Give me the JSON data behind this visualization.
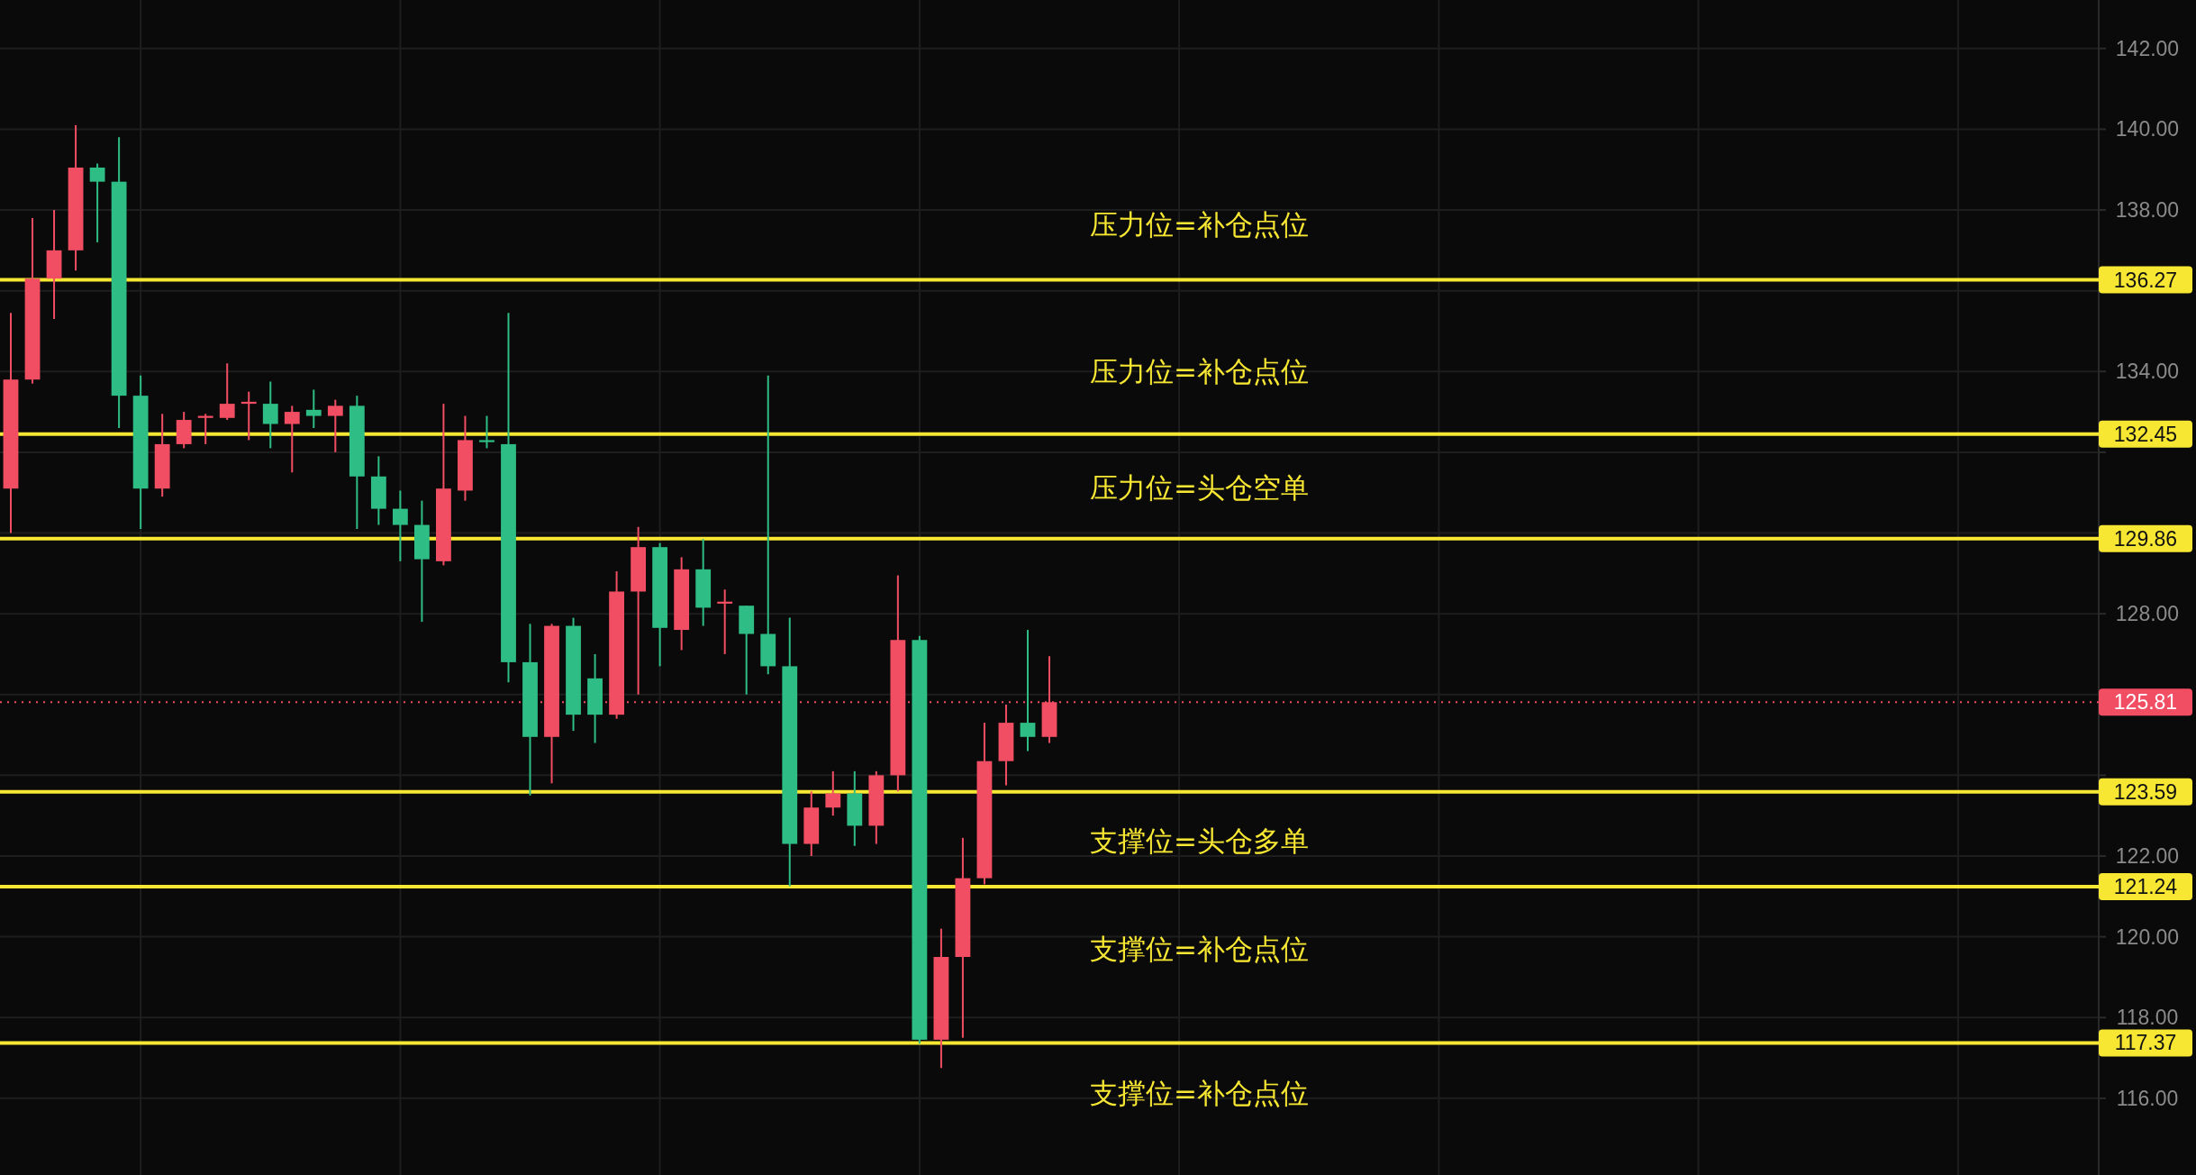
{
  "chart_data": {
    "type": "candlestick",
    "tick_labels": "y",
    "grid": true,
    "categories": [
      null,
      null,
      null,
      null,
      null,
      null,
      null,
      null,
      null,
      null,
      null,
      null,
      null,
      null,
      null,
      null,
      null,
      null,
      null,
      null,
      null,
      null,
      null,
      null,
      null,
      null,
      null,
      null,
      null,
      null,
      null,
      null,
      null,
      null,
      null,
      null,
      null,
      null,
      null,
      null,
      null,
      null,
      null,
      null,
      null,
      null,
      null,
      null,
      null,
      null,
      null,
      null,
      null,
      null,
      null,
      null,
      null,
      null,
      null,
      null,
      null,
      null,
      null,
      null,
      null,
      null,
      null,
      null,
      null,
      null,
      null,
      null,
      null,
      null,
      null,
      null,
      null,
      null,
      null,
      null,
      null,
      null,
      null,
      null,
      null,
      null,
      null,
      null,
      null,
      null,
      null,
      null,
      null,
      null,
      null,
      null,
      null
    ],
    "ohlc": [
      [
        131.1,
        135.45,
        130.0,
        133.8
      ],
      [
        133.8,
        137.8,
        133.7,
        136.3
      ],
      [
        136.3,
        138.0,
        135.3,
        137.0
      ],
      [
        137.0,
        140.1,
        136.5,
        139.05
      ],
      [
        139.05,
        139.15,
        137.2,
        138.7
      ],
      [
        138.7,
        139.8,
        132.6,
        133.4
      ],
      [
        133.4,
        133.9,
        130.1,
        131.1
      ],
      [
        131.1,
        132.95,
        130.9,
        132.2
      ],
      [
        132.2,
        133.0,
        132.1,
        132.8
      ],
      [
        132.85,
        132.95,
        132.2,
        132.9
      ],
      [
        132.85,
        134.2,
        132.8,
        133.2
      ],
      [
        133.2,
        133.5,
        132.3,
        133.25
      ],
      [
        133.2,
        133.75,
        132.1,
        132.7
      ],
      [
        132.7,
        133.15,
        131.5,
        133.0
      ],
      [
        133.05,
        133.55,
        132.6,
        132.9
      ],
      [
        132.9,
        133.3,
        132.0,
        133.15
      ],
      [
        133.15,
        133.4,
        130.1,
        131.4
      ],
      [
        131.4,
        131.9,
        130.2,
        130.6
      ],
      [
        130.6,
        131.05,
        129.3,
        130.2
      ],
      [
        130.2,
        130.8,
        127.8,
        129.35
      ],
      [
        129.3,
        133.2,
        129.2,
        131.1
      ],
      [
        131.05,
        132.9,
        130.8,
        132.3
      ],
      [
        132.3,
        132.9,
        132.1,
        132.25
      ],
      [
        132.2,
        135.45,
        126.3,
        126.8
      ],
      [
        126.8,
        127.75,
        123.5,
        124.95
      ],
      [
        124.95,
        127.75,
        123.8,
        127.7
      ],
      [
        127.7,
        127.9,
        125.1,
        125.5
      ],
      [
        126.4,
        127.0,
        124.8,
        125.5
      ],
      [
        125.5,
        129.05,
        125.4,
        128.55
      ],
      [
        128.55,
        130.15,
        126.0,
        129.65
      ],
      [
        129.65,
        129.75,
        126.7,
        127.65
      ],
      [
        127.6,
        129.4,
        127.1,
        129.1
      ],
      [
        129.1,
        129.85,
        127.7,
        128.15
      ],
      [
        128.25,
        128.6,
        127.0,
        128.3
      ],
      [
        128.2,
        128.2,
        126.0,
        127.5
      ],
      [
        127.5,
        133.9,
        126.5,
        126.7
      ],
      [
        126.7,
        127.9,
        121.25,
        122.3
      ],
      [
        122.3,
        123.6,
        122.0,
        123.2
      ],
      [
        123.2,
        124.1,
        123.0,
        123.55
      ],
      [
        123.55,
        124.1,
        122.25,
        122.75
      ],
      [
        122.75,
        124.1,
        122.3,
        124.0
      ],
      [
        124.0,
        128.95,
        123.6,
        127.35
      ],
      [
        127.35,
        127.45,
        117.35,
        117.45
      ],
      [
        117.45,
        120.2,
        116.75,
        119.5
      ],
      [
        119.5,
        122.45,
        117.5,
        121.45
      ],
      [
        121.45,
        125.3,
        121.3,
        124.35
      ],
      [
        124.35,
        125.75,
        123.75,
        125.3
      ],
      [
        125.3,
        127.6,
        124.6,
        124.95
      ],
      [
        124.95,
        126.95,
        124.8,
        125.81
      ],
      null,
      null,
      null,
      null,
      null,
      null,
      null,
      null,
      null,
      null,
      null,
      null,
      null,
      null,
      null,
      null,
      null,
      null,
      null,
      null,
      null,
      null,
      null,
      null,
      null,
      null,
      null,
      null,
      null,
      null,
      null,
      null,
      null,
      null,
      null,
      null,
      null,
      null,
      null,
      null,
      null,
      null,
      null,
      null,
      null,
      null,
      null,
      null
    ],
    "colors": [
      "#f24e63",
      "#f24e63",
      "#f24e63",
      "#f24e63",
      "#2ebd85",
      "#2ebd85",
      "#2ebd85",
      "#f24e63",
      "#f24e63",
      "#f24e63",
      "#f24e63",
      "#f24e63",
      "#2ebd85",
      "#f24e63",
      "#2ebd85",
      "#f24e63",
      "#2ebd85",
      "#2ebd85",
      "#2ebd85",
      "#2ebd85",
      "#f24e63",
      "#f24e63",
      "#2ebd85",
      "#2ebd85",
      "#2ebd85",
      "#f24e63",
      "#2ebd85",
      "#2ebd85",
      "#f24e63",
      "#f24e63",
      "#2ebd85",
      "#f24e63",
      "#2ebd85",
      "#f24e63",
      "#2ebd85",
      "#2ebd85",
      "#2ebd85",
      "#f24e63",
      "#f24e63",
      "#2ebd85",
      "#f24e63",
      "#f24e63",
      "#2ebd85",
      "#f24e63",
      "#f24e63",
      "#f24e63",
      "#f24e63",
      "#2ebd85",
      "#f24e63",
      null,
      null,
      null,
      null,
      null,
      null,
      null,
      null,
      null,
      null,
      null,
      null,
      null,
      null,
      null,
      null,
      null,
      null,
      null,
      null,
      null,
      null,
      null,
      null,
      null,
      null,
      null,
      null,
      null,
      null,
      null,
      null,
      null,
      null,
      null,
      null,
      null,
      null,
      null,
      null,
      null,
      null,
      null,
      null,
      null,
      null,
      null,
      null
    ],
    "ylim": [
      114.1,
      143.2
    ],
    "yticks": [
      {
        "value": 116,
        "label": "116.00"
      },
      {
        "value": 118,
        "label": "118.00"
      },
      {
        "value": 120,
        "label": "120.00"
      },
      {
        "value": 122,
        "label": "122.00"
      },
      {
        "value": 124,
        "label": null
      },
      {
        "value": 126,
        "label": null
      },
      {
        "value": 128,
        "label": "128.00"
      },
      {
        "value": 130,
        "label": null
      },
      {
        "value": 132,
        "label": null
      },
      {
        "value": 134,
        "label": "134.00"
      },
      {
        "value": 136,
        "label": null
      },
      {
        "value": 138,
        "label": "138.00"
      },
      {
        "value": 140,
        "label": "140.00"
      },
      {
        "value": 142,
        "label": "142.00"
      }
    ],
    "ref_lines": [
      {
        "axis": "y",
        "value": 136.27,
        "label": "136.27",
        "color": "#f7e733",
        "line_style": "solid"
      },
      {
        "axis": "y",
        "value": 132.45,
        "label": "132.45",
        "color": "#f7e733",
        "line_style": "solid"
      },
      {
        "axis": "y",
        "value": 129.86,
        "label": "129.86",
        "color": "#f7e733",
        "line_style": "solid"
      },
      {
        "axis": "y",
        "value": 125.81,
        "label": "125.81",
        "color": "#f24e63",
        "line_style": "dotted"
      },
      {
        "axis": "y",
        "value": 123.59,
        "label": "123.59",
        "color": "#f7e733",
        "line_style": "solid"
      },
      {
        "axis": "y",
        "value": 121.24,
        "label": "121.24",
        "color": "#f7e733",
        "line_style": "solid"
      },
      {
        "axis": "y",
        "value": 117.37,
        "label": "117.37",
        "color": "#f7e733",
        "line_style": "solid"
      }
    ],
    "annotations": [
      "压力位=补仓点位",
      "压力位=补仓点位",
      "压力位=头仓空单",
      "支撑位=头仓多单",
      "支撑位=补仓点位",
      "支撑位=补仓点位"
    ]
  }
}
